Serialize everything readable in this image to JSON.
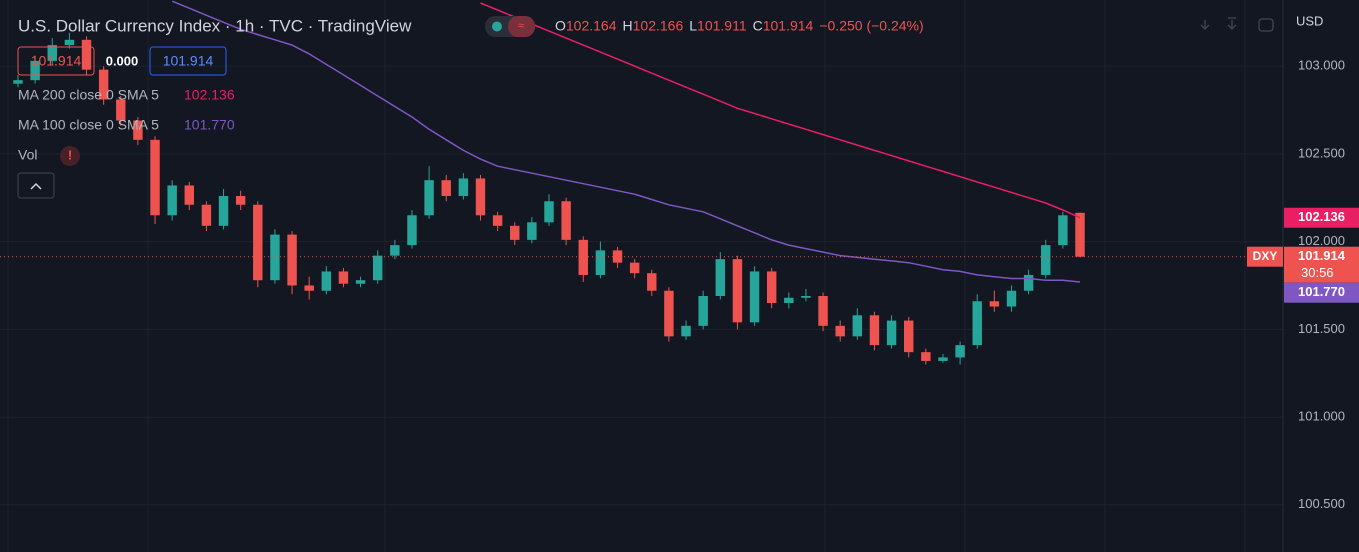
{
  "header": {
    "ohlc": [
      {
        "key": "O",
        "value": "102.164"
      },
      {
        "key": "H",
        "value": "102.166"
      },
      {
        "key": "L",
        "value": "101.911"
      },
      {
        "key": "C",
        "value": "101.914"
      }
    ],
    "change": "−0.250 (−0.24%)",
    "bid": "101.914",
    "spread": "0.000",
    "ask": "101.914",
    "vol": "Vol",
    "currency": "USD",
    "price_label": {
      "symbol": "DXY",
      "price": "101.914",
      "countdown": "30:56"
    }
  },
  "chart_data": {
    "type": "candlestick",
    "title": "U.S. Dollar Currency Index · 1h · TVC · TradingView",
    "up_color": "#26a69a",
    "down_color": "#ef5350",
    "open": [
      102.9,
      102.92,
      103.03,
      103.12,
      103.15,
      102.98,
      102.81,
      102.69,
      102.58,
      102.15,
      102.32,
      102.21,
      102.09,
      102.26,
      102.21,
      101.78,
      102.04,
      101.75,
      101.72,
      101.83,
      101.76,
      101.78,
      101.92,
      101.98,
      102.15,
      102.35,
      102.26,
      102.36,
      102.15,
      102.09,
      102.01,
      102.11,
      102.23,
      102.01,
      101.81,
      101.95,
      101.88,
      101.82,
      101.72,
      101.46,
      101.52,
      101.69,
      101.9,
      101.54,
      101.83,
      101.65,
      101.68,
      101.69,
      101.52,
      101.46,
      101.58,
      101.41,
      101.55,
      101.37,
      101.32,
      101.34,
      101.41,
      101.66,
      101.63,
      101.72,
      101.81,
      101.98,
      102.164
    ],
    "high": [
      102.95,
      103.06,
      103.16,
      103.19,
      103.17,
      103.0,
      102.83,
      102.71,
      102.6,
      102.35,
      102.34,
      102.23,
      102.3,
      102.29,
      102.23,
      102.07,
      102.06,
      101.8,
      101.86,
      101.85,
      101.8,
      101.95,
      102.01,
      102.18,
      102.43,
      102.38,
      102.39,
      102.38,
      102.17,
      102.11,
      102.14,
      102.27,
      102.25,
      102.03,
      102.0,
      101.97,
      101.9,
      101.84,
      101.74,
      101.55,
      101.72,
      101.94,
      101.92,
      101.86,
      101.85,
      101.71,
      101.73,
      101.71,
      101.55,
      101.62,
      101.6,
      101.58,
      101.57,
      101.39,
      101.36,
      101.43,
      101.7,
      101.72,
      101.75,
      101.84,
      102.01,
      102.17,
      102.166
    ],
    "low": [
      102.88,
      102.9,
      103.01,
      103.1,
      102.95,
      102.78,
      102.66,
      102.55,
      102.1,
      102.12,
      102.18,
      102.06,
      102.07,
      102.18,
      101.74,
      101.76,
      101.7,
      101.67,
      101.7,
      101.74,
      101.74,
      101.76,
      101.9,
      101.96,
      102.13,
      102.23,
      102.24,
      102.12,
      102.06,
      101.98,
      101.99,
      102.09,
      101.98,
      101.77,
      101.79,
      101.85,
      101.79,
      101.69,
      101.43,
      101.44,
      101.5,
      101.67,
      101.5,
      101.52,
      101.62,
      101.62,
      101.66,
      101.49,
      101.43,
      101.44,
      101.38,
      101.39,
      101.34,
      101.3,
      101.31,
      101.3,
      101.39,
      101.6,
      101.6,
      101.7,
      101.79,
      101.96,
      101.911
    ],
    "close": [
      102.92,
      103.03,
      103.12,
      103.15,
      102.98,
      102.81,
      102.69,
      102.58,
      102.15,
      102.32,
      102.21,
      102.09,
      102.26,
      102.21,
      101.78,
      102.04,
      101.75,
      101.72,
      101.83,
      101.76,
      101.78,
      101.92,
      101.98,
      102.15,
      102.35,
      102.26,
      102.36,
      102.15,
      102.09,
      102.01,
      102.11,
      102.23,
      102.01,
      101.81,
      101.95,
      101.88,
      101.82,
      101.72,
      101.46,
      101.52,
      101.69,
      101.9,
      101.54,
      101.83,
      101.65,
      101.68,
      101.69,
      101.52,
      101.46,
      101.58,
      101.41,
      101.55,
      101.37,
      101.32,
      101.34,
      101.41,
      101.66,
      101.63,
      101.72,
      101.81,
      101.98,
      102.15,
      101.914
    ],
    "series": [
      {
        "name": "MA 200 close 0 SMA 5",
        "color": "#e91e63",
        "last_label": "102.136",
        "values": [
          null,
          null,
          null,
          null,
          null,
          null,
          null,
          null,
          null,
          null,
          null,
          null,
          null,
          null,
          null,
          null,
          null,
          null,
          null,
          null,
          null,
          null,
          null,
          null,
          null,
          null,
          null,
          103.36,
          103.32,
          103.28,
          103.24,
          103.2,
          103.16,
          103.12,
          103.08,
          103.04,
          103.0,
          102.96,
          102.92,
          102.88,
          102.84,
          102.8,
          102.76,
          102.73,
          102.7,
          102.67,
          102.64,
          102.61,
          102.58,
          102.55,
          102.52,
          102.49,
          102.46,
          102.43,
          102.4,
          102.37,
          102.34,
          102.31,
          102.28,
          102.25,
          102.22,
          102.18,
          102.136
        ]
      },
      {
        "name": "MA 100 close 0 SMA 5",
        "color": "#7e57c2",
        "last_label": "101.770",
        "values": [
          null,
          null,
          null,
          null,
          null,
          null,
          null,
          null,
          null,
          103.37,
          103.33,
          103.29,
          103.25,
          103.21,
          103.18,
          103.15,
          103.12,
          103.07,
          103.01,
          102.95,
          102.89,
          102.83,
          102.77,
          102.71,
          102.64,
          102.58,
          102.52,
          102.47,
          102.43,
          102.41,
          102.39,
          102.37,
          102.35,
          102.33,
          102.31,
          102.29,
          102.27,
          102.24,
          102.21,
          102.19,
          102.17,
          102.13,
          102.09,
          102.05,
          102.01,
          101.98,
          101.96,
          101.94,
          101.92,
          101.91,
          101.9,
          101.89,
          101.88,
          101.86,
          101.84,
          101.83,
          101.81,
          101.8,
          101.79,
          101.79,
          101.78,
          101.78,
          101.77
        ]
      }
    ],
    "ylim": [
      100.231,
      103.377
    ],
    "yticks": [
      {
        "value": 103,
        "label": "103.000"
      },
      {
        "value": 102.5,
        "label": "102.500"
      },
      {
        "value": 102,
        "label": "102.000"
      },
      {
        "value": 101.5,
        "label": "101.500"
      },
      {
        "value": 101,
        "label": "101.000"
      },
      {
        "value": 100.5,
        "label": "100.500"
      }
    ],
    "grid": true
  }
}
